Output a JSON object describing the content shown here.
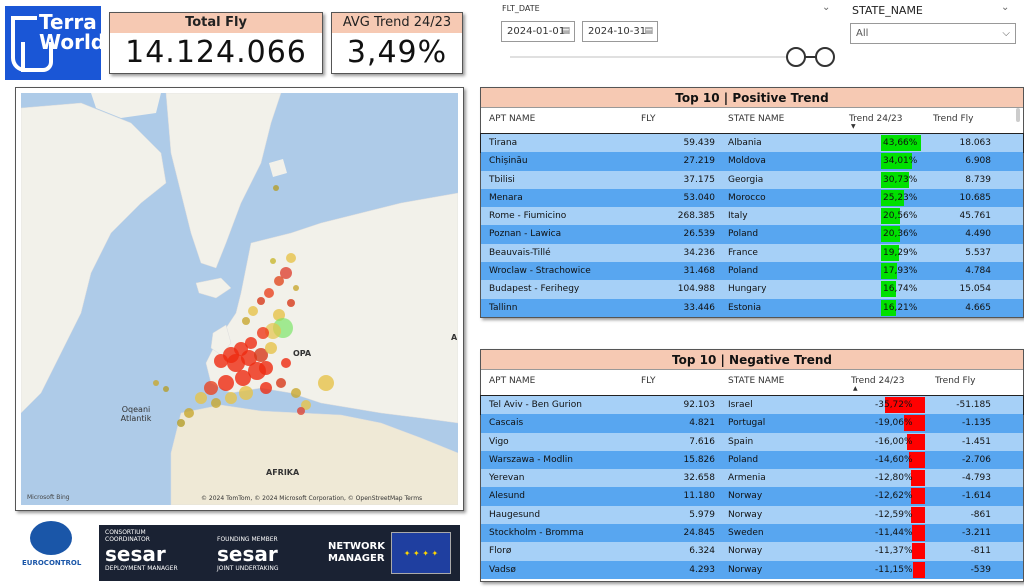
{
  "logo": {
    "line1": "Terra",
    "line2": "World"
  },
  "kpi": {
    "total_fly_label": "Total Fly",
    "total_fly_value": "14.124.066",
    "avg_trend_label": "AVG Trend 24/23",
    "avg_trend_value": "3,49%"
  },
  "date_slicer": {
    "label": "FLT_DATE",
    "start": "2024-01-01",
    "end": "2024-10-31"
  },
  "state_slicer": {
    "label": "STATE_NAME",
    "value": "All"
  },
  "map": {
    "labels": {
      "europe": "OPA",
      "ocean": "Oqeani\nAtlantik",
      "africa": "AFRIKA",
      "edge": "A"
    },
    "copyright": "© 2024 TomTom, © 2024 Microsoft Corporation, © OpenStreetMap  Terms",
    "bing": "Microsoft Bing"
  },
  "footer": {
    "eurocontrol": "EUROCONTROL",
    "sesar1_top": "CONSORTIUM\nCOORDINATOR",
    "sesar1_name": "sesar",
    "sesar1_sub": "DEPLOYMENT MANAGER",
    "sesar2_top": "FOUNDING MEMBER",
    "sesar2_name": "sesar",
    "sesar2_sub": "JOINT UNDERTAKING",
    "netman": "NETWORK\nMANAGER"
  },
  "positive": {
    "title": "Top 10 | Positive Trend",
    "cols": {
      "apt": "APT NAME",
      "fly": "FLY",
      "state": "STATE NAME",
      "trend": "Trend 24/23",
      "tfly": "Trend Fly"
    },
    "bar_color": "#00e000",
    "rows": [
      {
        "apt": "Tirana",
        "fly": "59.439",
        "state": "Albania",
        "trend": "43,66%",
        "pct": 43.66,
        "tfly": "18.063"
      },
      {
        "apt": "Chișinău",
        "fly": "27.219",
        "state": "Moldova",
        "trend": "34,01%",
        "pct": 34.01,
        "tfly": "6.908"
      },
      {
        "apt": "Tbilisi",
        "fly": "37.175",
        "state": "Georgia",
        "trend": "30,73%",
        "pct": 30.73,
        "tfly": "8.739"
      },
      {
        "apt": "Menara",
        "fly": "53.040",
        "state": "Morocco",
        "trend": "25,23%",
        "pct": 25.23,
        "tfly": "10.685"
      },
      {
        "apt": "Rome - Fiumicino",
        "fly": "268.385",
        "state": "Italy",
        "trend": "20,56%",
        "pct": 20.56,
        "tfly": "45.761"
      },
      {
        "apt": "Poznan - Lawica",
        "fly": "26.539",
        "state": "Poland",
        "trend": "20,36%",
        "pct": 20.36,
        "tfly": "4.490"
      },
      {
        "apt": "Beauvais-Tillé",
        "fly": "34.236",
        "state": "France",
        "trend": "19,29%",
        "pct": 19.29,
        "tfly": "5.537"
      },
      {
        "apt": "Wroclaw - Strachowice",
        "fly": "31.468",
        "state": "Poland",
        "trend": "17,93%",
        "pct": 17.93,
        "tfly": "4.784"
      },
      {
        "apt": "Budapest - Ferihegy",
        "fly": "104.988",
        "state": "Hungary",
        "trend": "16,74%",
        "pct": 16.74,
        "tfly": "15.054"
      },
      {
        "apt": "Tallinn",
        "fly": "33.446",
        "state": "Estonia",
        "trend": "16,21%",
        "pct": 16.21,
        "tfly": "4.665"
      }
    ]
  },
  "negative": {
    "title": "Top 10 | Negative Trend",
    "cols": {
      "apt": "APT NAME",
      "fly": "FLY",
      "state": "STATE NAME",
      "trend": "Trend 24/23",
      "tfly": "Trend Fly"
    },
    "bar_color": "#ff0000",
    "rows": [
      {
        "apt": "Tel Aviv - Ben Gurion",
        "fly": "92.103",
        "state": "Israel",
        "trend": "-35,72%",
        "pct": 35.72,
        "tfly": "-51.185"
      },
      {
        "apt": "Cascais",
        "fly": "4.821",
        "state": "Portugal",
        "trend": "-19,06%",
        "pct": 19.06,
        "tfly": "-1.135"
      },
      {
        "apt": "Vigo",
        "fly": "7.616",
        "state": "Spain",
        "trend": "-16,00%",
        "pct": 16.0,
        "tfly": "-1.451"
      },
      {
        "apt": "Warszawa - Modlin",
        "fly": "15.826",
        "state": "Poland",
        "trend": "-14,60%",
        "pct": 14.6,
        "tfly": "-2.706"
      },
      {
        "apt": "Yerevan",
        "fly": "32.658",
        "state": "Armenia",
        "trend": "-12,80%",
        "pct": 12.8,
        "tfly": "-4.793"
      },
      {
        "apt": "Alesund",
        "fly": "11.180",
        "state": "Norway",
        "trend": "-12,62%",
        "pct": 12.62,
        "tfly": "-1.614"
      },
      {
        "apt": "Haugesund",
        "fly": "5.979",
        "state": "Norway",
        "trend": "-12,59%",
        "pct": 12.59,
        "tfly": "-861"
      },
      {
        "apt": "Stockholm - Bromma",
        "fly": "24.845",
        "state": "Sweden",
        "trend": "-11,44%",
        "pct": 11.44,
        "tfly": "-3.211"
      },
      {
        "apt": "Florø",
        "fly": "6.324",
        "state": "Norway",
        "trend": "-11,37%",
        "pct": 11.37,
        "tfly": "-811"
      },
      {
        "apt": "Vadsø",
        "fly": "4.293",
        "state": "Norway",
        "trend": "-11,15%",
        "pct": 11.15,
        "tfly": "-539"
      }
    ]
  }
}
